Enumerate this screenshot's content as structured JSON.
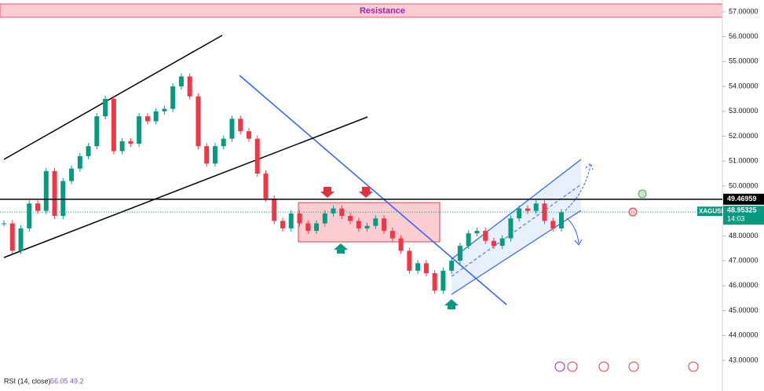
{
  "chart_data": {
    "type": "candlestick",
    "symbol": "XAGUSD",
    "annotation": "Resistance",
    "values": [
      48.5,
      47.4,
      48.3,
      49.3,
      49.0,
      50.6,
      48.8,
      50.2,
      50.7,
      51.2,
      51.6,
      52.8,
      53.5,
      51.4,
      51.8,
      51.7,
      52.8,
      52.6,
      53.0,
      53.1,
      54.0,
      54.4,
      53.6,
      51.6,
      50.9,
      51.6,
      51.9,
      52.7,
      52.2,
      51.9,
      50.5,
      49.5,
      48.6,
      48.3,
      48.9,
      48.5,
      48.2,
      48.5,
      48.9,
      49.1,
      48.8,
      48.6,
      48.3,
      48.4,
      48.7,
      48.2,
      47.9,
      47.4,
      46.6,
      46.9,
      46.5,
      45.8,
      46.6,
      47.0,
      47.6,
      48.1,
      48.2,
      47.8,
      47.6,
      47.9,
      48.7,
      49.1,
      49.0,
      49.3,
      48.6,
      48.3,
      48.95
    ],
    "ylim": [
      41.77,
      57.47
    ],
    "yticks": [
      {
        "value": 43,
        "label": "43.00000"
      },
      {
        "value": 44,
        "label": "44.00000"
      },
      {
        "value": 45,
        "label": "45.00000"
      },
      {
        "value": 46,
        "label": "46.00000"
      },
      {
        "value": 47,
        "label": "47.00000"
      },
      {
        "value": 48,
        "label": "48.00000"
      },
      {
        "value": 49,
        "label": "49.00000"
      },
      {
        "value": 50,
        "label": "50.00000"
      },
      {
        "value": 51,
        "label": "51.00000"
      },
      {
        "value": 52,
        "label": "52.00000"
      },
      {
        "value": 53,
        "label": "53.00000"
      },
      {
        "value": 54,
        "label": "54.00000"
      },
      {
        "value": 55,
        "label": "55.00000"
      },
      {
        "value": 56,
        "label": "56.00000"
      },
      {
        "value": 57,
        "label": "57.00000"
      }
    ],
    "level": 49.46959,
    "last_price": 48.95325,
    "countdown": "14:03",
    "up_color": "#089981",
    "down_color": "#f23645",
    "indicator": {
      "name": "RSI (14, close)",
      "values": [
        56.05,
        49.2
      ]
    }
  }
}
